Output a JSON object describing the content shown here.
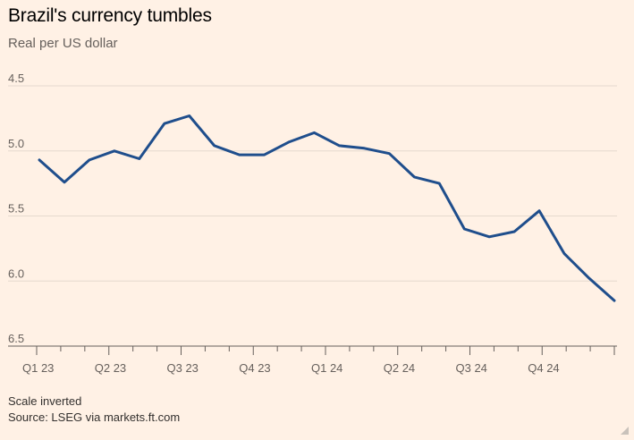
{
  "title": "Brazil's currency tumbles",
  "subtitle": "Real per US dollar",
  "footer": {
    "note": "Scale inverted",
    "source": "Source: LSEG via markets.ft.com"
  },
  "colors": {
    "background": "#fff1e5",
    "line": "#1f4e8c",
    "grid": "#e6d9ce",
    "axis": "#66605c"
  },
  "chart_data": {
    "type": "line",
    "title": "Brazil's currency tumbles",
    "subtitle": "Real per US dollar",
    "xlabel": "",
    "ylabel": "",
    "y_inverted": true,
    "ylim": [
      4.5,
      6.5
    ],
    "yticks": [
      "4.5",
      "5.0",
      "5.5",
      "6.0",
      "6.5"
    ],
    "ytick_values": [
      4.5,
      5.0,
      5.5,
      6.0,
      6.5
    ],
    "xticks": [
      "Q1 23",
      "Q2 23",
      "Q3 23",
      "Q4 23",
      "Q1 24",
      "Q2 24",
      "Q3 24",
      "Q4 24"
    ],
    "grid": true,
    "legend": "none",
    "series": [
      {
        "values": [
          5.07,
          5.24,
          5.07,
          5.0,
          5.06,
          4.79,
          4.73,
          4.96,
          5.03,
          5.03,
          4.93,
          4.86,
          4.96,
          4.98,
          5.02,
          5.2,
          5.25,
          5.6,
          5.66,
          5.62,
          5.46,
          5.79,
          5.98,
          6.15
        ]
      }
    ]
  }
}
